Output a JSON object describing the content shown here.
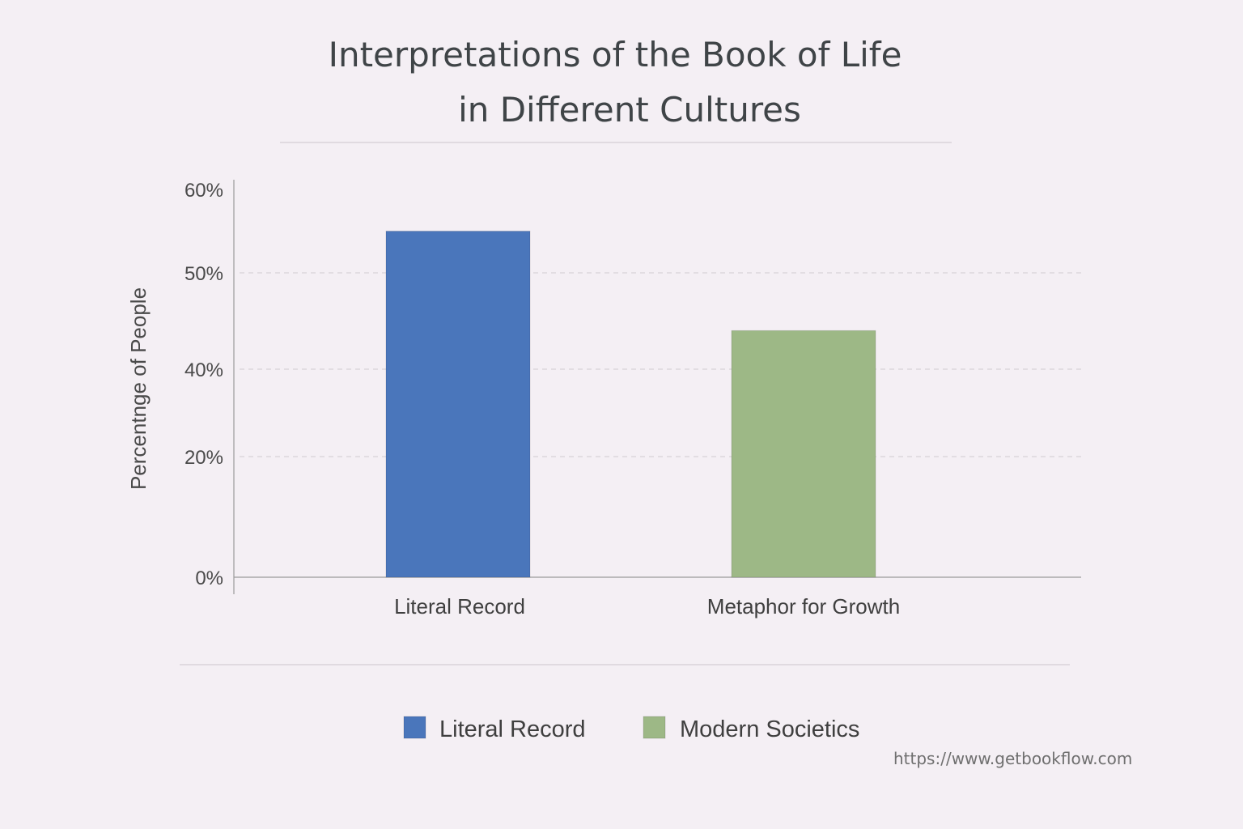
{
  "chart_data": {
    "type": "bar",
    "title_lines": [
      "Interpretations of the Book of Life",
      "in Different Cultures"
    ],
    "ylabel": "Percentnge of People",
    "xlabel": "",
    "categories": [
      "Literal Record",
      "Metaphor for Growth"
    ],
    "values": [
      55,
      44
    ],
    "bar_colors": [
      "#4a76bb",
      "#9db886"
    ],
    "y_ticks": [
      {
        "value": 0,
        "label": "0%"
      },
      {
        "value": 20,
        "label": "20%"
      },
      {
        "value": 40,
        "label": "40%"
      },
      {
        "value": 50,
        "label": "50%"
      },
      {
        "value": 60,
        "label": "60%"
      }
    ],
    "gridlines": true,
    "legend": {
      "placement": "bottom",
      "entries": [
        {
          "label": "Literal Record",
          "color": "#4a76bb"
        },
        {
          "label": "Modern Societics",
          "color": "#9db886"
        }
      ]
    }
  },
  "source": "https://www.getbookflow.com"
}
